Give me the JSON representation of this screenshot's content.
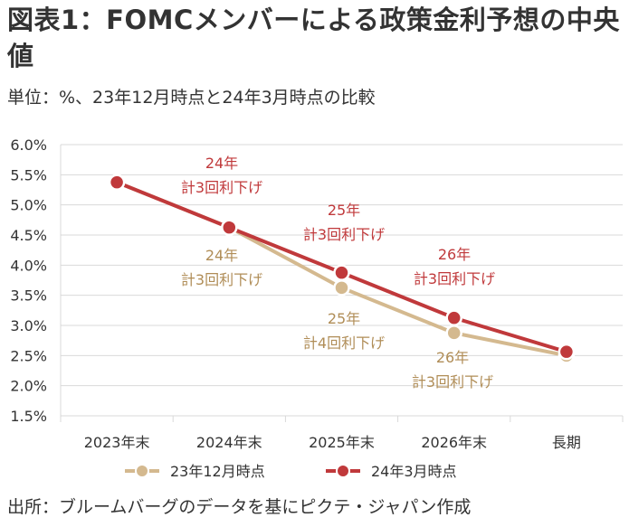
{
  "title": "図表1：FOMCメンバーによる政策金利予想の中央値",
  "subtitle": "単位：%、23年12月時点と24年3月時点の比較",
  "source": "出所：ブルームバーグのデータを基にピクテ・ジャパン作成",
  "colors": {
    "series_dec": "#d4b98f",
    "series_mar": "#c0393b",
    "label_dec": "#b08d57",
    "label_mar": "#c0393b",
    "grid": "#d9d9d9",
    "axis_text": "#333333"
  },
  "chart_data": {
    "type": "line",
    "categories": [
      "2023年末",
      "2024年末",
      "2025年末",
      "2026年末",
      "長期"
    ],
    "y_ticks": [
      "1.5%",
      "2.0%",
      "2.5%",
      "3.0%",
      "3.5%",
      "4.0%",
      "4.5%",
      "5.0%",
      "5.5%",
      "6.0%"
    ],
    "ylim": [
      1.5,
      6.0
    ],
    "grid": true,
    "legend_position": "bottom",
    "series": [
      {
        "name": "23年12月時点",
        "color_key": "series_dec",
        "values": [
          5.375,
          4.625,
          3.625,
          2.875,
          2.5
        ]
      },
      {
        "name": "24年3月時点",
        "color_key": "series_mar",
        "values": [
          5.375,
          4.625,
          3.875,
          3.125,
          2.5625
        ]
      }
    ],
    "annotations": [
      {
        "series": "24年3月時点",
        "lines": [
          "24年",
          "計3回利下げ"
        ]
      },
      {
        "series": "24年3月時点",
        "lines": [
          "25年",
          "計3回利下げ"
        ]
      },
      {
        "series": "24年3月時点",
        "lines": [
          "26年",
          "計3回利下げ"
        ]
      },
      {
        "series": "23年12月時点",
        "lines": [
          "24年",
          "計3回利下げ"
        ]
      },
      {
        "series": "23年12月時点",
        "lines": [
          "25年",
          "計4回利下げ"
        ]
      },
      {
        "series": "23年12月時点",
        "lines": [
          "26年",
          "計3回利下げ"
        ]
      }
    ]
  }
}
